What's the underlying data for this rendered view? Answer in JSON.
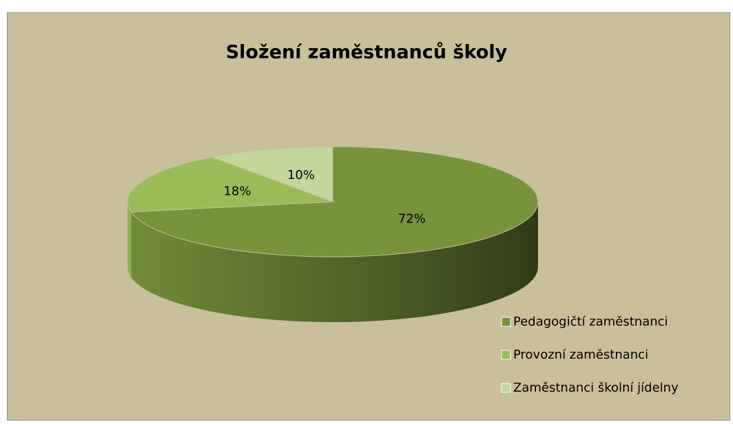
{
  "chart_data": {
    "type": "pie",
    "title": "Složení zaměstnanců školy",
    "categories": [
      "Pedagogičtí zaměstnanci",
      "Provozní zaměstnanci",
      "Zaměstnanci školní jídelny"
    ],
    "values": [
      72,
      18,
      10
    ],
    "value_labels": [
      "72%",
      "18%",
      "10%"
    ],
    "colors": [
      "#77933c",
      "#9bbb59",
      "#c3d69b"
    ],
    "legend": "right"
  }
}
